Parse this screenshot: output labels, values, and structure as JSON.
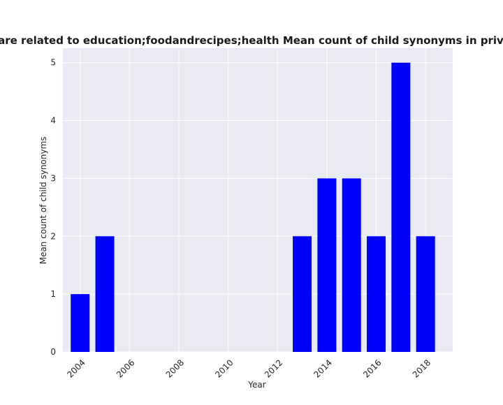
{
  "chart_data": {
    "type": "bar",
    "title": "Categories are related to education;foodandrecipes;health Mean count of child synonyms in privacy policies",
    "xlabel": "Year",
    "ylabel": "Mean count of child synonyms",
    "x": [
      2004,
      2005,
      2013,
      2014,
      2015,
      2016,
      2017,
      2018
    ],
    "values": [
      1,
      2,
      2,
      3,
      3,
      2,
      5,
      2
    ],
    "xlim": [
      2003.3,
      2019.1
    ],
    "ylim": [
      0,
      5.25
    ],
    "xticks": [
      2004,
      2006,
      2008,
      2010,
      2012,
      2014,
      2016,
      2018
    ],
    "yticks": [
      0,
      1,
      2,
      3,
      4,
      5
    ],
    "bar_color": "#0000ff",
    "background_color": "#eaeaf2",
    "grid_color": "#ffffff",
    "grid": true
  }
}
